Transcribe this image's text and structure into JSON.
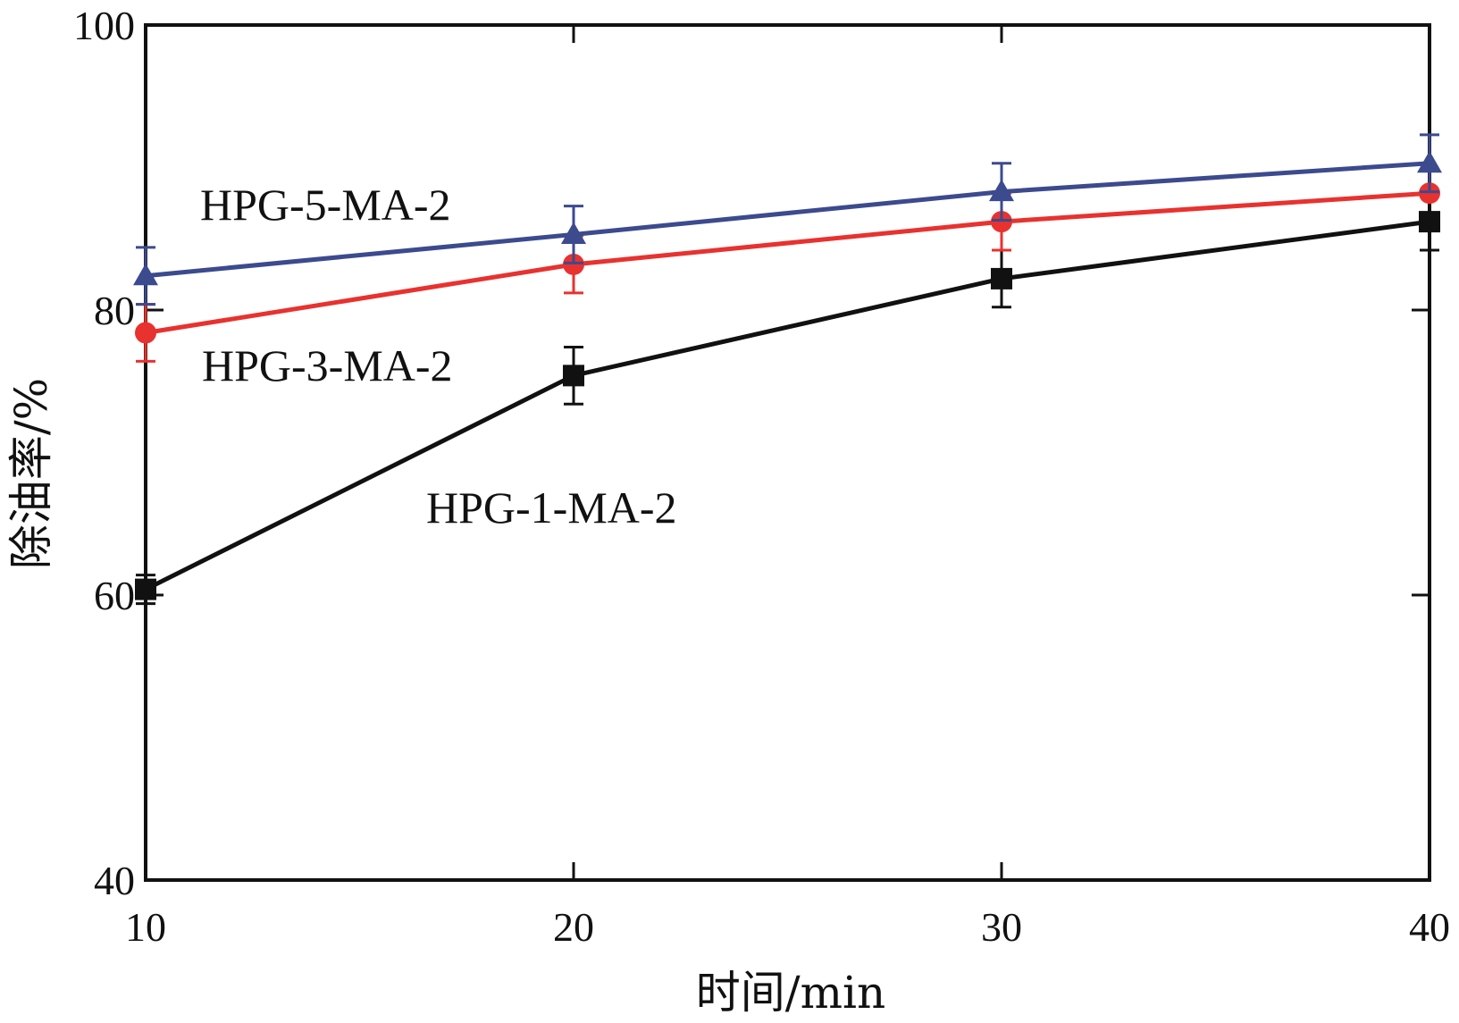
{
  "chart_data": {
    "type": "line",
    "title": "",
    "xlabel": "时间/min",
    "ylabel": "除油率/%",
    "xlim": [
      10,
      40
    ],
    "ylim": [
      40,
      100
    ],
    "xticks": [
      10,
      20,
      30,
      40
    ],
    "yticks": [
      40,
      60,
      80,
      100
    ],
    "grid": false,
    "x": [
      10,
      20,
      30,
      40
    ],
    "series": [
      {
        "name": "HPG-1-MA-2",
        "color": "#111111",
        "marker": "square",
        "values": [
          60.4,
          75.4,
          82.2,
          86.2
        ],
        "errors": [
          1.0,
          2.0,
          2.0,
          2.0
        ]
      },
      {
        "name": "HPG-3-MA-2",
        "color": "#e8322f",
        "marker": "circle",
        "values": [
          78.4,
          83.2,
          86.2,
          88.2
        ],
        "errors": [
          2.0,
          2.0,
          2.0,
          0
        ]
      },
      {
        "name": "HPG-5-MA-2",
        "color": "#3c4a8e",
        "marker": "triangle",
        "values": [
          82.4,
          85.3,
          88.3,
          90.3
        ],
        "errors": [
          2.0,
          2.0,
          2.0,
          2.0
        ]
      }
    ],
    "annotations": [
      {
        "text": "HPG-5-MA-2",
        "series": "HPG-5-MA-2"
      },
      {
        "text": "HPG-3-MA-2",
        "series": "HPG-3-MA-2"
      },
      {
        "text": "HPG-1-MA-2",
        "series": "HPG-1-MA-2"
      }
    ]
  }
}
